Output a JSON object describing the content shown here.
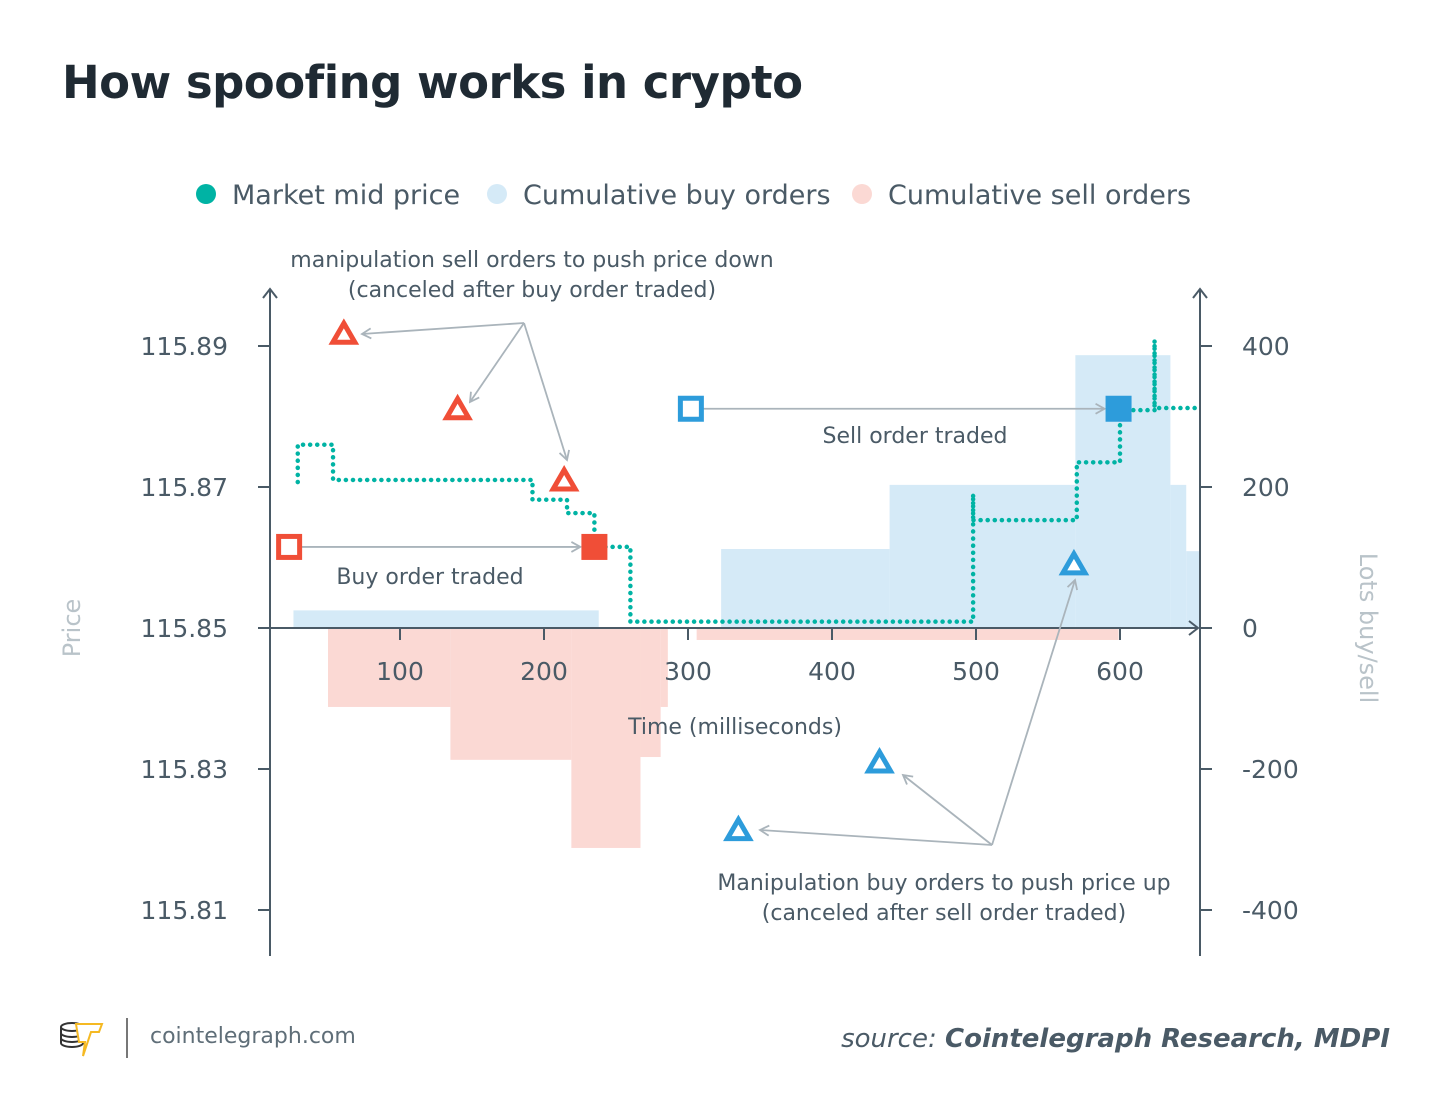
{
  "title": "How spoofing works in crypto",
  "footer": {
    "site": "cointelegraph.com",
    "source_prefix": "source:",
    "source": "Cointelegraph Research, MDPI",
    "logo_text": "cointelegraph"
  },
  "colors": {
    "mid_price": "#00b3a4",
    "buy_orders": "#d5eaf7",
    "sell_orders": "#fbd9d4",
    "sell_marker": "#f04e37",
    "buy_marker": "#2d9cdb",
    "arrow": "#aab4bb",
    "text": "#4a5a66"
  },
  "chart_data": {
    "type": "line",
    "xlabel": "Time (milliseconds)",
    "ylabel_left": "Price",
    "ylabel_right": "Lots buy/sell",
    "xlim": [
      10,
      655
    ],
    "ylim_left": [
      115.8,
      115.89
    ],
    "ylim_right": [
      -460,
      480
    ],
    "x_ticks": [
      "100",
      "200",
      "300",
      "400",
      "500",
      "600"
    ],
    "y_ticks_left": [
      "115.89",
      "115.87",
      "115.85",
      "115.83",
      "115.81"
    ],
    "y_ticks_right": [
      "400",
      "200",
      "0",
      "-200",
      "-400"
    ],
    "legend": [
      "Market mid price",
      "Cumulative buy orders",
      "Cumulative sell orders"
    ],
    "legend_placement": "top",
    "mid_price": [
      [
        29,
        115.8707
      ],
      [
        29,
        115.876
      ],
      [
        53.5,
        115.876
      ],
      [
        53.5,
        115.871
      ],
      [
        192,
        115.871
      ],
      [
        192,
        115.8682
      ],
      [
        216,
        115.8682
      ],
      [
        216,
        115.8663
      ],
      [
        235,
        115.8663
      ],
      [
        235,
        115.8615
      ],
      [
        260,
        115.8615
      ],
      [
        260,
        115.8509
      ],
      [
        498,
        115.8509
      ],
      [
        498,
        115.869
      ],
      [
        498,
        115.8653
      ],
      [
        570,
        115.8653
      ],
      [
        570,
        115.8735
      ],
      [
        600,
        115.8735
      ],
      [
        600,
        115.8809
      ],
      [
        624,
        115.8809
      ],
      [
        624,
        115.8908
      ],
      [
        624,
        115.8812
      ],
      [
        655,
        115.8812
      ]
    ],
    "buy_orders": [
      [
        26,
        238,
        25
      ],
      [
        323,
        440,
        112
      ],
      [
        440,
        569,
        203
      ],
      [
        569,
        635,
        387
      ],
      [
        635,
        646,
        203
      ],
      [
        646,
        655,
        109
      ]
    ],
    "sell_orders": [
      [
        50,
        135,
        -112
      ],
      [
        135,
        219,
        -187
      ],
      [
        219,
        267,
        -312
      ],
      [
        267,
        281,
        -183
      ],
      [
        281,
        286,
        -112
      ],
      [
        306,
        599,
        -17
      ]
    ],
    "markers": {
      "sell_spoof_triangles": [
        [
          61,
          115.8918
        ],
        [
          140,
          115.8811
        ],
        [
          214,
          115.871
        ]
      ],
      "buy_order_placed": [
        23,
        115.8615
      ],
      "buy_order_traded": [
        235,
        115.8615
      ],
      "sell_order_placed": [
        302,
        115.8811
      ],
      "sell_order_traded": [
        599,
        115.8811
      ],
      "buy_spoof_triangles": [
        [
          568,
          115.8591
        ],
        [
          433,
          115.831
        ],
        [
          335,
          115.8214
        ]
      ]
    },
    "annotations": {
      "sell_spoof": [
        "manipulation sell orders to push price down",
        "(canceled after buy order traded)"
      ],
      "buy_traded": "Buy order traded",
      "sell_traded": "Sell order traded",
      "buy_spoof": [
        "Manipulation buy orders to push price up",
        "(canceled after sell order traded)"
      ]
    }
  }
}
